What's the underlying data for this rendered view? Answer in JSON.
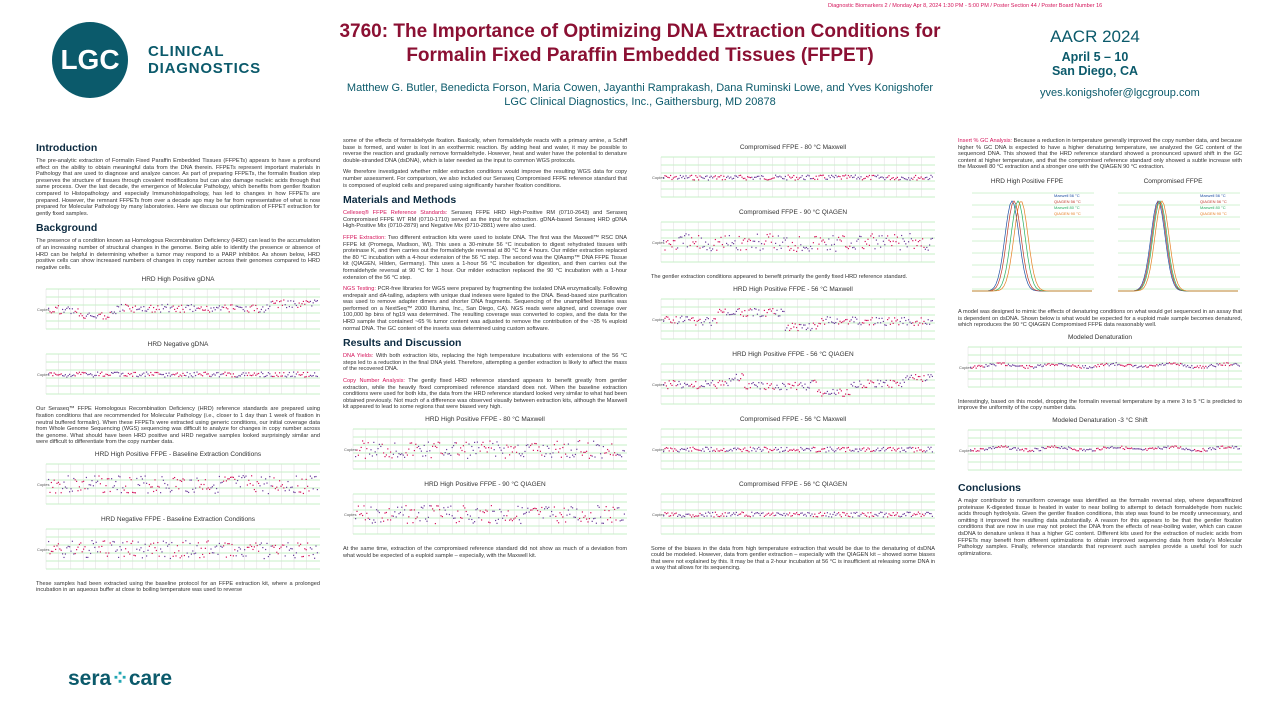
{
  "header": {
    "top_note": "Diagnostic Biomarkers 2 / Monday Apr 8, 2024 1:30 PM - 5:00 PM / Poster Section 44 / Poster Board Number 16",
    "logo_text": "LGC",
    "brand_line1": "CLINICAL",
    "brand_line2": "DIAGNOSTICS",
    "title_line1": "3760: The Importance of Optimizing DNA Extraction Conditions for",
    "title_line2": "Formalin Fixed Paraffin Embedded Tissues (FFPET)",
    "authors": "Matthew G. Butler, Benedicta Forson, Maria Cowen, Jayanthi Ramprakash, Dana Ruminski Lowe, and Yves Konigshofer",
    "affiliation": "LGC Clinical Diagnostics, Inc., Gaithersburg, MD 20878",
    "conference": "AACR 2024",
    "dates": "April 5 – 10",
    "location": "San Diego, CA",
    "email": "yves.konigshofer@lgcgroup.com"
  },
  "col1": {
    "intro_heading": "Introduction",
    "intro_text": "The pre-analytic extraction of Formalin Fixed Paraffin Embedded Tissues (FFPETs) appears to have a profound effect on the ability to obtain meaningful data from the DNA therein. FFPETs represent important materials in Pathology that are used to diagnose and analyze cancer. As part of preparing FFPETs, the formalin fixation step preserves the structure of tissues through covalent modifications but can also damage nucleic acids through that same process. Over the last decade, the emergence of Molecular Pathology, which benefits from gentler fixation compared to Histopathology and especially Immunohistopathology, has led to changes in how FFPETs are prepared. However, the remnant FFPETs from over a decade ago may be far from representative of what is now prepared for Molecular Pathology by many laboratories. Here we discuss our optimization of FFPET extraction for gently fixed samples.",
    "bg_heading": "Background",
    "bg_text": "The presence of a condition known as Homologous Recombination Deficiency (HRD) can lead to the accumulation of an increasing number of structural changes in the genome. Being able to identify the presence or absence of HRD can be helpful in determining whether a tumor may respond to a PARP inhibitor. As shown below, HRD positive cells can show increased numbers of changes in copy number across their genomes compared to HRD negative cells.",
    "fig1": "HRD High Positive gDNA",
    "fig2": "HRD Negative gDNA",
    "mid_text": "Our Seraseq™ FFPE Homologous Recombination Deficiency (HRD) reference standards are prepared using fixation conditions that are recommended for Molecular Pathology (i.e., closer to 1 day than 1 week of fixation in neutral buffered formalin). When these FFPETs were extracted using generic conditions, our initial coverage data from Whole Genome Sequencing (WGS) sequencing was difficult to analyze for changes in copy number across the genome. What should have been HRD positive and HRD negative samples looked surprisingly similar and were difficult to differentiate from the copy number data.",
    "fig3": "HRD High Positive FFPE - Baseline Extraction Conditions",
    "fig4": "HRD Negative FFPE - Baseline Extraction Conditions",
    "end_text": "These samples had been extracted using the baseline protocol for an FFPE extraction kit, where a prolonged incubation in an aqueous buffer at close to boiling temperature was used to reverse"
  },
  "col2": {
    "cont_text": "some of the effects of formaldehyde fixation. Basically, when formaldehyde reacts with a primary amine, a Schiff base is formed, and water is lost in an exothermic reaction. By adding heat and water, it may be possible to reverse the reaction and gradually remove formaldehyde. However, heat and water have the potential to denature double-stranded DNA (dsDNA), which is later needed as the input to common WGS protocols.",
    "cont_text2": "We therefore investigated whether milder extraction conditions would improve the resulting WGS data for copy number assessment. For comparison, we also included our Seraseq Compromised FFPE reference standard that is composed of euploid cells and prepared using significantly harsher fixation conditions.",
    "mm_heading": "Materials and Methods",
    "mm_label1": "Celleseq® FFPE Reference Standards:",
    "mm_text1": " Seraseq FFPE HRD High-Positive RM (0710-2643) and Seraseq Compromised FFPE WT RM (0710-1710) served as the input for extraction. gDNA-based Seraseq HRD gDNA High-Positive Mix (0710-2879) and Negative Mix (0710-2881) were also used.",
    "mm_label2": "FFPE Extraction:",
    "mm_text2": " Two different extraction kits were used to isolate DNA. The first was the Maxwell™ RSC DNA FFPE kit (Promega, Madison, WI). This uses a 30-minute 56 °C incubation to digest rehydrated tissues with proteinase K, and then carries out the formaldehyde reversal at 80 °C for 4 hours. Our milder extraction replaced the 80 °C incubation with a 4-hour extension of the 56 °C step. The second was the QIAamp™ DNA FFPE Tissue kit (QIAGEN, Hilden, Germany). This uses a 1-hour 56 °C incubation for digestion, and then carries out the formaldehyde reversal at 90 °C for 1 hour. Our milder extraction replaced the 90 °C incubation with a 1-hour extension of the 56 °C step.",
    "mm_label3": "NGS Testing:",
    "mm_text3": " PCR-free libraries for WGS were prepared by fragmenting the isolated DNA enzymatically. Following endrepair and dA-tailing, adapters with unique dual indexes were ligated to the DNA. Bead-based size purification was used to remove adapter dimers and shorter DNA fragments. Sequencing of the unamplified libraries was performed on a NextSeq™ 2000 Illumina, Inc., San Diego, CA). NGS reads were aligned, and coverage over 100,000 bp bins of hg19 was determined. The resulting coverage was converted to copies, and the data for the HRD sample that contained ~65 % tumor content was adjusted to remove the contribution of the ~35 % euploid normal DNA. The GC content of the inserts was determined using custom software.",
    "rd_heading": "Results and Discussion",
    "rd_label1": "DNA Yields:",
    "rd_text1": " With both extraction kits, replacing the high temperature incubations with extensions of the 56 °C steps led to a reduction in the final DNA yield. Therefore, attempting a gentler extraction is likely to affect the mass of the recovered DNA.",
    "rd_label2": "Copy Number Analysis:",
    "rd_text2": " The gently fixed HRD reference standard appears to benefit greatly from gentler extraction, while the heavily fixed compromised reference standard does not. When the baseline extraction conditions were used for both kits, the data from the HRD reference standard looked very similar to what had been obtained previously. Not much of a difference was observed visually between extraction kits, although the Maxwell kit appeared to lead to some regions that were biased very high.",
    "fig1": "HRD High Positive FFPE - 80 °C Maxwell",
    "fig2": "HRD High Positive FFPE - 90 °C QIAGEN",
    "end_text": "At the same time, extraction of the compromised reference standard did not show as much of a deviation from what would be expected of a euploid sample – especially, with the Maxwell kit."
  },
  "col3": {
    "fig1": "Compromised FFPE - 80 °C Maxwell",
    "fig2": "Compromised FFPE - 90 °C QIAGEN",
    "text1": "The gentler extraction conditions appeared to benefit primarily the gently fixed HRD reference standard.",
    "fig3": "HRD High Positive FFPE - 56 °C Maxwell",
    "fig4": "HRD High Positive FFPE - 56 °C QIAGEN",
    "fig5": "Compromised FFPE - 56 °C Maxwell",
    "fig6": "Compromised FFPE - 56 °C QIAGEN",
    "text2": "Some of the biases in the data from high temperature extraction that would be due to the denaturing of dsDNA could be modeled. However, data from gentler extraction – especially with the QIAGEN kit – showed some biases that were not explained by this. It may be that a 2-hour incubation at 56 °C is insufficient at releasing some DNA in a way that allows for its sequencing."
  },
  "col4": {
    "label1": "Insert % GC Analysis:",
    "text1": " Because a reduction in temperature generally improved the copy number data, and because higher % GC DNA is expected to have a higher denaturing temperature, we analyzed the GC content of the sequenced DNA. This showed that the HRD reference standard showed a pronounced upward shift in the GC content at higher temperature, and that the compromised reference standard only showed a subtle increase with the Maxwell 80 °C extraction and a stronger one with the QIAGEN 90 °C extraction.",
    "gc1_title": "HRD High Positive FFPE",
    "gc2_title": "Compromised FFPE",
    "legend": [
      "Maxwell 56 °C",
      "QIAGEN 56 °C",
      "Maxwell 80 °C",
      "QIAGEN 90 °C"
    ],
    "text2": "A model was designed to mimic the effects of denaturing conditions on what would get sequenced in an assay that is dependent on dsDNA. Shown below is what would be expected for a euploid male sample becomes denatured, which reproduces the 90 °C QIAGEN Compromised FFPE data reasonably well.",
    "fig1": "Modeled Denaturation",
    "text3": "Interestingly, based on this model, dropping the formalin reversal temperature by a mere 3 to 5 °C is predicted to improve the uniformity of the copy number data.",
    "fig2": "Modeled Denaturation -3 °C Shift",
    "conc_heading": "Conclusions",
    "conc_text": "A major contributor to nonuniform coverage was identified as the formalin reversal step, where deparaffinized proteinase K-digested tissue is heated in water to near boiling to attempt to detach formaldehyde from nucleic acids through hydrolysis. Given the gentler fixation conditions, this step was found to be mostly unnecessary, and omitting it improved the resulting data substantially. A reason for this appears to be that the gentler fixation conditions that are now in use may not protect the DNA from the effects of near-boiling water, which can cause dsDNA to denature unless it has a higher GC content. Different kits used for the extraction of nucleic acids from FFPETs may benefit from different optimizations to obtain improved sequencing data from today's Molecular Pathology samples. Finally, reference standards that represent such samples provide a useful tool for such optimizations."
  },
  "footer": {
    "sera": "sera",
    "care": "care"
  },
  "colors": {
    "teal": "#0b5a6b",
    "title": "#8b1033",
    "pink": "#d4145a",
    "purple": "#6a3d9a",
    "grid": "#8fe08f"
  }
}
